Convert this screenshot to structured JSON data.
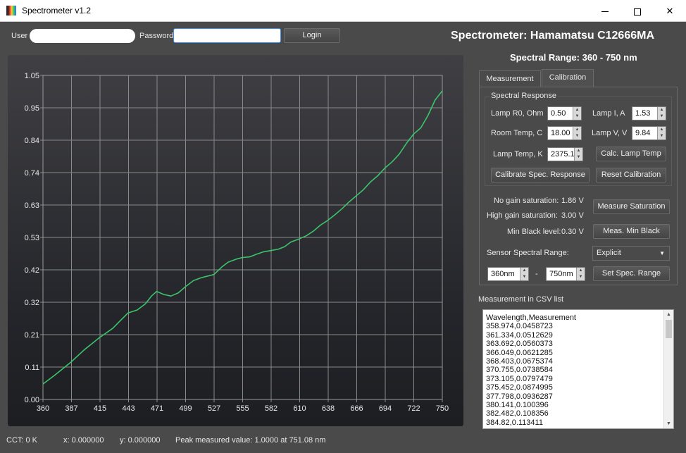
{
  "window": {
    "title": "Spectrometer v1.2",
    "app_icon": "spectrum-icon",
    "minimize_icon": "minimize-icon",
    "maximize_icon": "maximize-icon",
    "close_icon": "close-icon"
  },
  "login": {
    "user_label": "User",
    "user_value": "",
    "password_label": "Password",
    "password_value": "",
    "login_button": "Login"
  },
  "header": {
    "title": "Spectrometer: Hamamatsu C12666MA",
    "range": "Spectral Range: 360 - 750 nm"
  },
  "tabs": [
    {
      "label": "Measurement",
      "active": false
    },
    {
      "label": "Calibration",
      "active": true
    }
  ],
  "calibration": {
    "group_title": "Spectral Response",
    "lamp_r0_label": "Lamp R0, Ohm",
    "lamp_r0_value": "0.50",
    "lamp_i_label": "Lamp I, A",
    "lamp_i_value": "1.53",
    "room_temp_label": "Room Temp, C",
    "room_temp_value": "18.00",
    "lamp_v_label": "Lamp V, V",
    "lamp_v_value": "9.84",
    "lamp_temp_label": "Lamp Temp, K",
    "lamp_temp_value": "2375.1",
    "calc_lamp_temp_button": "Calc. Lamp Temp",
    "calibrate_button": "Calibrate Spec. Response",
    "reset_button": "Reset Calibration",
    "no_gain_label": "No gain saturation:",
    "no_gain_value": "1.86 V",
    "high_gain_label": "High gain saturation:",
    "high_gain_value": "3.00 V",
    "measure_saturation_button": "Measure Saturation",
    "min_black_label": "Min Black level:",
    "min_black_value": "0.30 V",
    "meas_min_black_button": "Meas. Min Black",
    "sensor_range_label": "Sensor Spectral Range:",
    "sensor_range_selected": "Explicit",
    "range_from": "360nm",
    "range_sep": "-",
    "range_to": "750nm",
    "set_range_button": "Set Spec. Range"
  },
  "csv": {
    "title": "Measurement in CSV list",
    "lines": [
      "Wavelength,Measurement",
      "358.974,0.0458723",
      "361.334,0.0512629",
      "363.692,0.0560373",
      "366.049,0.0621285",
      "368.403,0.0675374",
      "370.755,0.0738584",
      "373.105,0.0797479",
      "375.452,0.0874995",
      "377.798,0.0936287",
      "380.141,0.100396",
      "382.482,0.108356",
      "384.82,0.113411"
    ]
  },
  "status": {
    "cct": "CCT:  0 K",
    "x": "x:  0.000000",
    "y": "y:  0.000000",
    "peak": "Peak measured value:  1.0000 at 751.08 nm"
  },
  "colors": {
    "background": "#4a4a4a",
    "line": "#3cc46a",
    "grid": "#8a8a8a"
  },
  "chart_data": {
    "type": "line",
    "x_ticks": [
      "360",
      "387",
      "415",
      "443",
      "471",
      "499",
      "527",
      "555",
      "582",
      "610",
      "638",
      "666",
      "694",
      "722",
      "750"
    ],
    "y_ticks": [
      "0.00",
      "0.11",
      "0.21",
      "0.32",
      "0.42",
      "0.53",
      "0.63",
      "0.74",
      "0.84",
      "0.95",
      "1.05"
    ],
    "xlim": [
      360,
      750
    ],
    "ylim": [
      0,
      1.05
    ],
    "grid": true,
    "series": [
      {
        "x": [
          360,
          372,
          387,
          400,
          415,
          428,
          437,
          443,
          452,
          460,
          466,
          471,
          478,
          485,
          492,
          499,
          507,
          515,
          521,
          527,
          535,
          541,
          549,
          555,
          562,
          568,
          575,
          582,
          590,
          596,
          602,
          610,
          617,
          624,
          631,
          638,
          645,
          652,
          659,
          666,
          673,
          680,
          687,
          694,
          701,
          708,
          715,
          722,
          729,
          736,
          743,
          750
        ],
        "y": [
          0.05,
          0.08,
          0.12,
          0.16,
          0.2,
          0.23,
          0.26,
          0.28,
          0.29,
          0.31,
          0.335,
          0.35,
          0.34,
          0.335,
          0.345,
          0.365,
          0.385,
          0.395,
          0.4,
          0.405,
          0.43,
          0.445,
          0.455,
          0.46,
          0.462,
          0.47,
          0.478,
          0.482,
          0.487,
          0.495,
          0.51,
          0.52,
          0.53,
          0.545,
          0.565,
          0.58,
          0.598,
          0.618,
          0.64,
          0.66,
          0.68,
          0.705,
          0.725,
          0.75,
          0.77,
          0.795,
          0.83,
          0.86,
          0.88,
          0.92,
          0.97,
          1.0
        ]
      }
    ]
  }
}
